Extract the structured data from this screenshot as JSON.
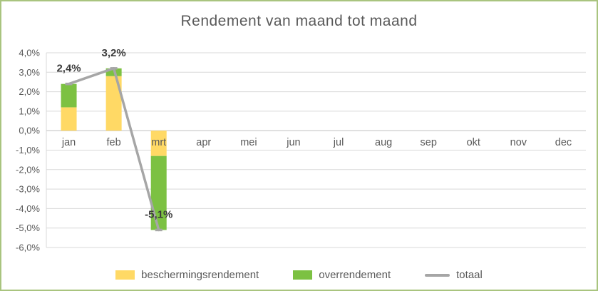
{
  "chart_data": {
    "type": "bar",
    "title": "Rendement van maand tot maand",
    "categories": [
      "jan",
      "feb",
      "mrt",
      "apr",
      "mei",
      "jun",
      "jul",
      "aug",
      "sep",
      "okt",
      "nov",
      "dec"
    ],
    "series": [
      {
        "name": "beschermingsrendement",
        "type": "bar",
        "color": "#ffd965",
        "values": [
          1.2,
          2.8,
          -1.3,
          null,
          null,
          null,
          null,
          null,
          null,
          null,
          null,
          null
        ]
      },
      {
        "name": "overrendement",
        "type": "bar",
        "color": "#7cc142",
        "values": [
          1.2,
          0.4,
          -3.8,
          null,
          null,
          null,
          null,
          null,
          null,
          null,
          null,
          null
        ]
      },
      {
        "name": "totaal",
        "type": "line",
        "color": "#a6a6a6",
        "values": [
          2.4,
          3.2,
          -5.1,
          null,
          null,
          null,
          null,
          null,
          null,
          null,
          null,
          null
        ]
      }
    ],
    "data_labels": [
      {
        "category": "jan",
        "text": "2,4%"
      },
      {
        "category": "feb",
        "text": "3,2%"
      },
      {
        "category": "mrt",
        "text": "-5,1%"
      }
    ],
    "ylim": [
      -6,
      4
    ],
    "yticks": [
      4,
      3,
      2,
      1,
      0,
      -1,
      -2,
      -3,
      -4,
      -5,
      -6
    ],
    "ytick_labels": [
      "4,0%",
      "3,0%",
      "2,0%",
      "1,0%",
      "0,0%",
      "-1,0%",
      "-2,0%",
      "-3,0%",
      "-4,0%",
      "-5,0%",
      "-6,0%"
    ],
    "grid": true,
    "legend_position": "bottom"
  },
  "colors": {
    "figure_border": "#a9c47f",
    "gridline": "#d9d9d9",
    "zero_axis": "#bfbfbf",
    "tick_text": "#595959",
    "data_label_text": "#3b3b3b",
    "title_text": "#595959"
  }
}
